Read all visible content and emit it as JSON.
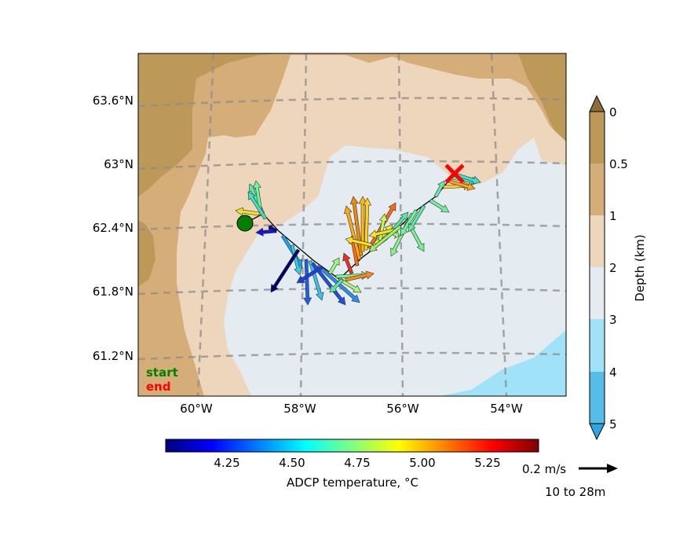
{
  "chart_data": {
    "type": "map",
    "map": {
      "lat_ticks": [
        "63.6°N",
        "63°N",
        "62.4°N",
        "61.8°N",
        "61.2°N"
      ],
      "lon_ticks": [
        "60°W",
        "58°W",
        "56°W",
        "54°W"
      ],
      "graticule": "dashed grey",
      "land_color": "#bc9958",
      "legend_start": "start",
      "legend_end": "end",
      "start_color": "#008000",
      "end_color": "#ff0000",
      "track": [
        [
          -59.0,
          62.5
        ],
        [
          -58.4,
          62.35
        ],
        [
          -57.9,
          62.0
        ],
        [
          -57.3,
          61.9
        ],
        [
          -56.9,
          62.2
        ],
        [
          -56.4,
          62.5
        ],
        [
          -55.9,
          62.65
        ],
        [
          -55.3,
          62.9
        ]
      ]
    },
    "depth_colorbar": {
      "label": "Depth (km)",
      "ticks": [
        "0",
        "0.5",
        "1",
        "2",
        "3",
        "4",
        "5"
      ],
      "colors": [
        "#bc9958",
        "#d4ad79",
        "#eed6bc",
        "#e4ebf1",
        "#a0e2f8",
        "#56bce8"
      ],
      "extend": "both"
    },
    "temperature_colorbar": {
      "label": "ADCP temperature, °C",
      "ticks": [
        "4.25",
        "4.50",
        "4.75",
        "5.00",
        "5.25"
      ],
      "range": [
        4.03,
        5.45
      ],
      "colormap": "jet"
    },
    "quiver_key": {
      "speed_label": "0.2 m/s",
      "depth_label": "10 to 28m"
    }
  }
}
